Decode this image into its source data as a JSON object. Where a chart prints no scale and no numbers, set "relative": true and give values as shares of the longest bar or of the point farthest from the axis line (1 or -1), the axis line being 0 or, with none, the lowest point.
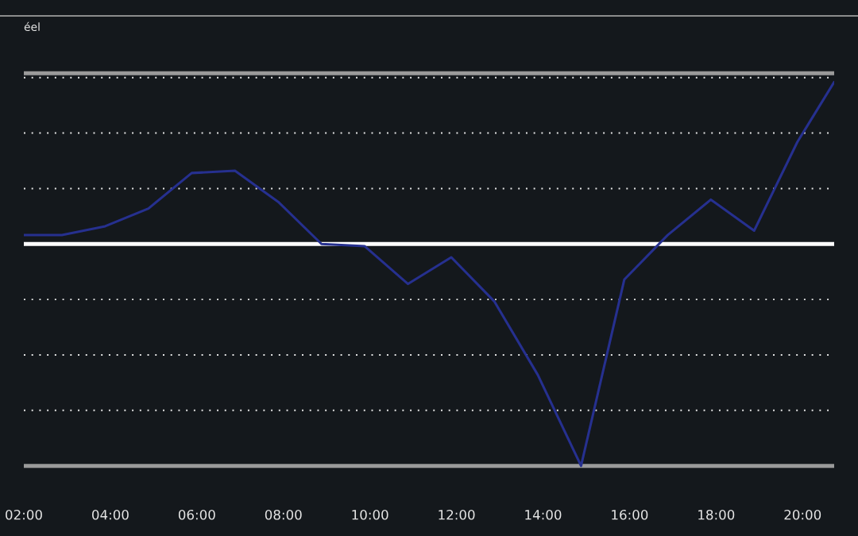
{
  "chart_data": {
    "type": "line",
    "relative": true,
    "x": [
      2,
      2.88,
      3.88,
      4.88,
      5.88,
      6.88,
      7.88,
      8.88,
      9.88,
      10.88,
      11.88,
      12.88,
      13.88,
      14.88,
      15.88,
      16.88,
      17.88,
      18.88,
      19.88,
      20.73
    ],
    "series": [
      {
        "color": "#26308f",
        "values": [
          0.04,
          0.04,
          0.08,
          0.16,
          0.32,
          0.33,
          0.19,
          0,
          -0.01,
          -0.18,
          -0.06,
          -0.26,
          -0.59,
          -1,
          -0.16,
          0.04,
          0.2,
          0.06,
          0.46,
          0.73
        ]
      }
    ],
    "xlim": [
      2,
      20.73
    ],
    "xticks": [
      {
        "value": 2,
        "label": "02:00"
      },
      {
        "value": 4,
        "label": "04:00"
      },
      {
        "value": 6,
        "label": "06:00"
      },
      {
        "value": 8,
        "label": "08:00"
      },
      {
        "value": 10,
        "label": "10:00"
      },
      {
        "value": 12,
        "label": "12:00"
      },
      {
        "value": 14,
        "label": "14:00"
      },
      {
        "value": 16,
        "label": "16:00"
      },
      {
        "value": 18,
        "label": "18:00"
      },
      {
        "value": 20,
        "label": "20:00"
      }
    ],
    "tick_labels": "x",
    "grid": "y",
    "ref_lines": [
      {
        "axis": "y",
        "value": 0,
        "color": "#ffffff"
      },
      {
        "axis": "y",
        "value": 0.77,
        "color": "#9a9a9a"
      },
      {
        "axis": "y",
        "value": -1,
        "color": "#9a9a9a"
      }
    ],
    "annotations": [
      "éel"
    ]
  }
}
